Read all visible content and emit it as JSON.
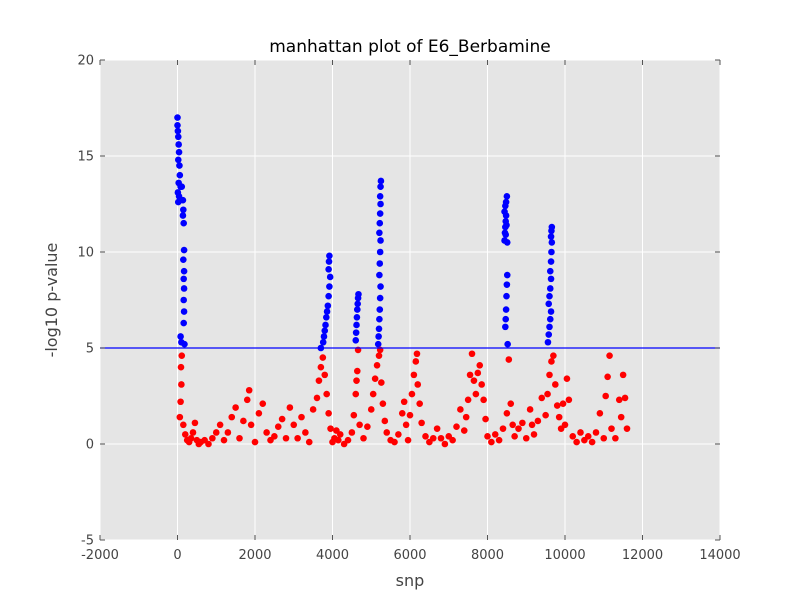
{
  "chart_data": {
    "type": "scatter",
    "title": "manhattan plot of E6_Berbamine",
    "xlabel": "snp",
    "ylabel": "-log10 p-value",
    "xlim": [
      -2000,
      14000
    ],
    "ylim": [
      -5,
      20
    ],
    "x_ticks": [
      -2000,
      0,
      2000,
      4000,
      6000,
      8000,
      10000,
      12000,
      14000
    ],
    "y_ticks": [
      -5,
      0,
      5,
      10,
      15,
      20
    ],
    "grid": true,
    "background": "#e5e5e5",
    "threshold": {
      "value": 5,
      "color": "#0000ff"
    },
    "series": [
      {
        "color": "#0000ff",
        "points": [
          [
            0,
            17.0
          ],
          [
            0,
            16.6
          ],
          [
            10,
            16.3
          ],
          [
            20,
            16.0
          ],
          [
            30,
            15.6
          ],
          [
            40,
            15.2
          ],
          [
            20,
            14.8
          ],
          [
            50,
            14.5
          ],
          [
            60,
            14.0
          ],
          [
            30,
            13.6
          ],
          [
            80,
            13.4
          ],
          [
            110,
            13.4
          ],
          [
            10,
            13.1
          ],
          [
            40,
            12.9
          ],
          [
            20,
            12.6
          ],
          [
            140,
            12.7
          ],
          [
            150,
            12.2
          ],
          [
            140,
            11.9
          ],
          [
            160,
            11.5
          ],
          [
            170,
            10.1
          ],
          [
            150,
            9.6
          ],
          [
            170,
            9.0
          ],
          [
            160,
            8.6
          ],
          [
            170,
            8.1
          ],
          [
            160,
            7.5
          ],
          [
            170,
            6.9
          ],
          [
            160,
            6.3
          ],
          [
            80,
            5.6
          ],
          [
            100,
            5.3
          ],
          [
            180,
            5.2
          ],
          [
            3700,
            5.0
          ],
          [
            3760,
            5.3
          ],
          [
            3780,
            5.6
          ],
          [
            3800,
            5.9
          ],
          [
            3820,
            6.2
          ],
          [
            3840,
            6.6
          ],
          [
            3860,
            6.9
          ],
          [
            3880,
            7.2
          ],
          [
            3900,
            7.7
          ],
          [
            3920,
            8.2
          ],
          [
            3940,
            8.7
          ],
          [
            3900,
            9.1
          ],
          [
            3910,
            9.5
          ],
          [
            3920,
            9.8
          ],
          [
            4600,
            5.4
          ],
          [
            4610,
            5.8
          ],
          [
            4620,
            6.2
          ],
          [
            4630,
            6.6
          ],
          [
            4640,
            7.0
          ],
          [
            4650,
            7.3
          ],
          [
            4660,
            7.6
          ],
          [
            4670,
            7.8
          ],
          [
            5180,
            5.2
          ],
          [
            5190,
            5.6
          ],
          [
            5200,
            6.0
          ],
          [
            5210,
            6.5
          ],
          [
            5220,
            7.0
          ],
          [
            5230,
            7.6
          ],
          [
            5240,
            8.2
          ],
          [
            5210,
            8.8
          ],
          [
            5220,
            9.4
          ],
          [
            5230,
            10.0
          ],
          [
            5240,
            10.6
          ],
          [
            5210,
            11.0
          ],
          [
            5220,
            11.5
          ],
          [
            5230,
            12.0
          ],
          [
            5240,
            12.5
          ],
          [
            5230,
            12.9
          ],
          [
            5240,
            13.4
          ],
          [
            5250,
            13.7
          ],
          [
            8460,
            6.1
          ],
          [
            8470,
            6.5
          ],
          [
            8480,
            7.0
          ],
          [
            8490,
            7.7
          ],
          [
            8500,
            8.3
          ],
          [
            8510,
            8.8
          ],
          [
            8440,
            10.6
          ],
          [
            8450,
            11.0
          ],
          [
            8460,
            11.3
          ],
          [
            8470,
            11.6
          ],
          [
            8480,
            11.9
          ],
          [
            8440,
            12.1
          ],
          [
            8460,
            12.4
          ],
          [
            8480,
            12.6
          ],
          [
            8500,
            12.9
          ],
          [
            8470,
            10.9
          ],
          [
            8490,
            11.4
          ],
          [
            8510,
            10.5
          ],
          [
            8520,
            5.2
          ],
          [
            9560,
            5.3
          ],
          [
            9580,
            5.7
          ],
          [
            9600,
            6.1
          ],
          [
            9620,
            6.5
          ],
          [
            9640,
            6.9
          ],
          [
            9580,
            7.3
          ],
          [
            9600,
            7.7
          ],
          [
            9620,
            8.1
          ],
          [
            9640,
            8.6
          ],
          [
            9620,
            9.0
          ],
          [
            9640,
            9.5
          ],
          [
            9650,
            10.0
          ],
          [
            9660,
            10.5
          ],
          [
            9640,
            10.8
          ],
          [
            9650,
            11.1
          ],
          [
            9660,
            11.3
          ]
        ]
      },
      {
        "color": "#ff0000",
        "points": [
          [
            60,
            1.4
          ],
          [
            80,
            2.2
          ],
          [
            100,
            3.1
          ],
          [
            90,
            4.0
          ],
          [
            110,
            4.6
          ],
          [
            150,
            1.0
          ],
          [
            200,
            0.5
          ],
          [
            250,
            0.2
          ],
          [
            300,
            0.1
          ],
          [
            350,
            0.3
          ],
          [
            400,
            0.6
          ],
          [
            450,
            1.1
          ],
          [
            500,
            0.2
          ],
          [
            550,
            0.0
          ],
          [
            600,
            0.1
          ],
          [
            700,
            0.2
          ],
          [
            800,
            0.0
          ],
          [
            900,
            0.3
          ],
          [
            1000,
            0.6
          ],
          [
            1100,
            1.0
          ],
          [
            1200,
            0.2
          ],
          [
            1300,
            0.6
          ],
          [
            1400,
            1.4
          ],
          [
            1500,
            1.9
          ],
          [
            1600,
            0.3
          ],
          [
            1700,
            1.2
          ],
          [
            1800,
            2.3
          ],
          [
            1850,
            2.8
          ],
          [
            1900,
            1.0
          ],
          [
            2000,
            0.1
          ],
          [
            2100,
            1.6
          ],
          [
            2200,
            2.1
          ],
          [
            2300,
            0.6
          ],
          [
            2400,
            0.2
          ],
          [
            2500,
            0.4
          ],
          [
            2600,
            0.9
          ],
          [
            2700,
            1.3
          ],
          [
            2800,
            0.3
          ],
          [
            2900,
            1.9
          ],
          [
            3000,
            1.0
          ],
          [
            3100,
            0.3
          ],
          [
            3200,
            1.4
          ],
          [
            3300,
            0.6
          ],
          [
            3400,
            0.1
          ],
          [
            3500,
            1.8
          ],
          [
            3600,
            2.4
          ],
          [
            3650,
            3.3
          ],
          [
            3700,
            4.0
          ],
          [
            3750,
            4.5
          ],
          [
            3800,
            3.6
          ],
          [
            3850,
            2.6
          ],
          [
            3900,
            1.6
          ],
          [
            3950,
            0.8
          ],
          [
            4000,
            0.1
          ],
          [
            4050,
            0.3
          ],
          [
            4100,
            0.7
          ],
          [
            4150,
            0.2
          ],
          [
            4200,
            0.5
          ],
          [
            4300,
            0.0
          ],
          [
            4400,
            0.2
          ],
          [
            4500,
            0.6
          ],
          [
            4550,
            1.5
          ],
          [
            4600,
            2.6
          ],
          [
            4620,
            3.3
          ],
          [
            4640,
            3.8
          ],
          [
            4660,
            4.9
          ],
          [
            4700,
            1.0
          ],
          [
            4800,
            0.3
          ],
          [
            4900,
            0.9
          ],
          [
            5000,
            1.8
          ],
          [
            5050,
            2.6
          ],
          [
            5100,
            3.4
          ],
          [
            5150,
            4.1
          ],
          [
            5200,
            4.6
          ],
          [
            5230,
            4.9
          ],
          [
            5260,
            3.2
          ],
          [
            5300,
            2.1
          ],
          [
            5350,
            1.2
          ],
          [
            5400,
            0.6
          ],
          [
            5500,
            0.2
          ],
          [
            5600,
            0.1
          ],
          [
            5700,
            0.5
          ],
          [
            5800,
            1.6
          ],
          [
            5850,
            2.2
          ],
          [
            5900,
            1.0
          ],
          [
            5950,
            0.2
          ],
          [
            6000,
            1.5
          ],
          [
            6050,
            2.6
          ],
          [
            6100,
            3.6
          ],
          [
            6150,
            4.3
          ],
          [
            6180,
            4.7
          ],
          [
            6200,
            3.1
          ],
          [
            6250,
            2.1
          ],
          [
            6300,
            1.1
          ],
          [
            6400,
            0.4
          ],
          [
            6500,
            0.1
          ],
          [
            6600,
            0.3
          ],
          [
            6700,
            0.8
          ],
          [
            6800,
            0.3
          ],
          [
            6900,
            0.0
          ],
          [
            7000,
            0.4
          ],
          [
            7100,
            0.2
          ],
          [
            7200,
            0.9
          ],
          [
            7300,
            1.8
          ],
          [
            7400,
            0.7
          ],
          [
            7450,
            1.4
          ],
          [
            7500,
            2.3
          ],
          [
            7550,
            3.6
          ],
          [
            7600,
            4.7
          ],
          [
            7650,
            3.3
          ],
          [
            7700,
            2.6
          ],
          [
            7750,
            3.7
          ],
          [
            7800,
            4.1
          ],
          [
            7850,
            3.1
          ],
          [
            7900,
            2.3
          ],
          [
            7950,
            1.3
          ],
          [
            8000,
            0.4
          ],
          [
            8100,
            0.1
          ],
          [
            8200,
            0.5
          ],
          [
            8300,
            0.2
          ],
          [
            8400,
            0.8
          ],
          [
            8500,
            1.6
          ],
          [
            8550,
            4.4
          ],
          [
            8600,
            2.1
          ],
          [
            8650,
            1.0
          ],
          [
            8700,
            0.4
          ],
          [
            8800,
            0.8
          ],
          [
            8900,
            1.1
          ],
          [
            9000,
            0.3
          ],
          [
            9100,
            1.8
          ],
          [
            9150,
            1.0
          ],
          [
            9200,
            0.5
          ],
          [
            9300,
            1.2
          ],
          [
            9400,
            2.4
          ],
          [
            9500,
            1.5
          ],
          [
            9550,
            2.6
          ],
          [
            9600,
            3.6
          ],
          [
            9650,
            4.3
          ],
          [
            9700,
            4.6
          ],
          [
            9750,
            3.1
          ],
          [
            9800,
            2.0
          ],
          [
            9850,
            1.4
          ],
          [
            9900,
            0.8
          ],
          [
            9950,
            2.1
          ],
          [
            10000,
            1.0
          ],
          [
            10050,
            3.4
          ],
          [
            10100,
            2.3
          ],
          [
            10200,
            0.4
          ],
          [
            10300,
            0.1
          ],
          [
            10400,
            0.6
          ],
          [
            10500,
            0.2
          ],
          [
            10600,
            0.4
          ],
          [
            10700,
            0.1
          ],
          [
            10800,
            0.6
          ],
          [
            10900,
            1.6
          ],
          [
            11000,
            0.3
          ],
          [
            11050,
            2.5
          ],
          [
            11100,
            3.5
          ],
          [
            11150,
            4.6
          ],
          [
            11200,
            0.8
          ],
          [
            11300,
            0.3
          ],
          [
            11400,
            2.3
          ],
          [
            11450,
            1.4
          ],
          [
            11500,
            3.6
          ],
          [
            11550,
            2.4
          ],
          [
            11600,
            0.8
          ]
        ]
      }
    ]
  }
}
